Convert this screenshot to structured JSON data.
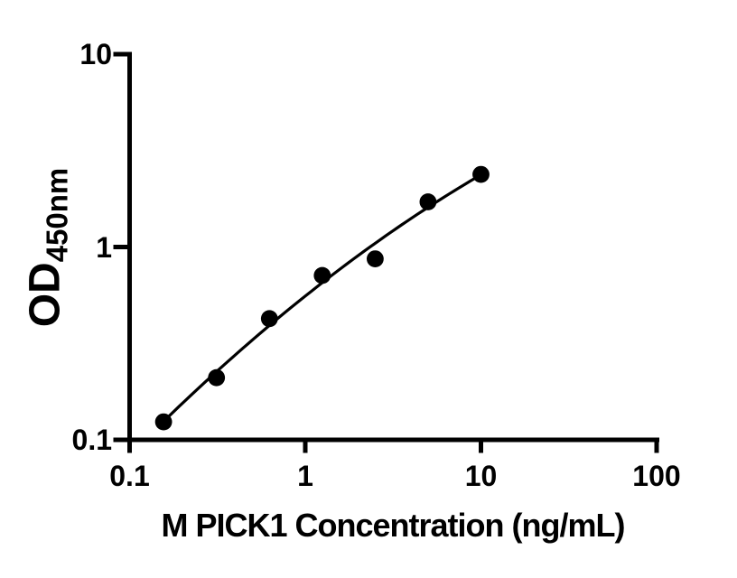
{
  "chart_data": {
    "type": "scatter",
    "title": "",
    "xlabel": "M PICK1 Concentration (ng/mL)",
    "ylabel_main": "OD",
    "ylabel_sub": "450nm",
    "x_scale": "log",
    "y_scale": "log",
    "xlim": [
      0.1,
      100
    ],
    "ylim": [
      0.1,
      10
    ],
    "grid": false,
    "legend": null,
    "x_ticks": [
      {
        "value": 0.1,
        "label": "0.1"
      },
      {
        "value": 1,
        "label": "1"
      },
      {
        "value": 10,
        "label": "10"
      },
      {
        "value": 100,
        "label": "100"
      }
    ],
    "y_ticks": [
      {
        "value": 10,
        "label": "10"
      },
      {
        "value": 1,
        "label": "1"
      },
      {
        "value": 0.1,
        "label": "0.1"
      }
    ],
    "points": [
      {
        "x": 0.156,
        "y": 0.124
      },
      {
        "x": 0.3125,
        "y": 0.21
      },
      {
        "x": 0.625,
        "y": 0.425
      },
      {
        "x": 1.25,
        "y": 0.712
      },
      {
        "x": 2.5,
        "y": 0.868
      },
      {
        "x": 5,
        "y": 1.715
      },
      {
        "x": 10,
        "y": 2.38
      }
    ],
    "fit_curve": {
      "model": "quadratic_loglog",
      "equation": "log10(OD) = a + b*log10(C) + c*log10(C)^2",
      "a": -0.2544,
      "b": 0.7268,
      "c": -0.0979,
      "x_start": 0.156,
      "x_end": 10
    },
    "colors": {
      "points": "#000000",
      "curve": "#000000",
      "axis": "#000000",
      "text": "#000000",
      "background": "#ffffff"
    }
  }
}
